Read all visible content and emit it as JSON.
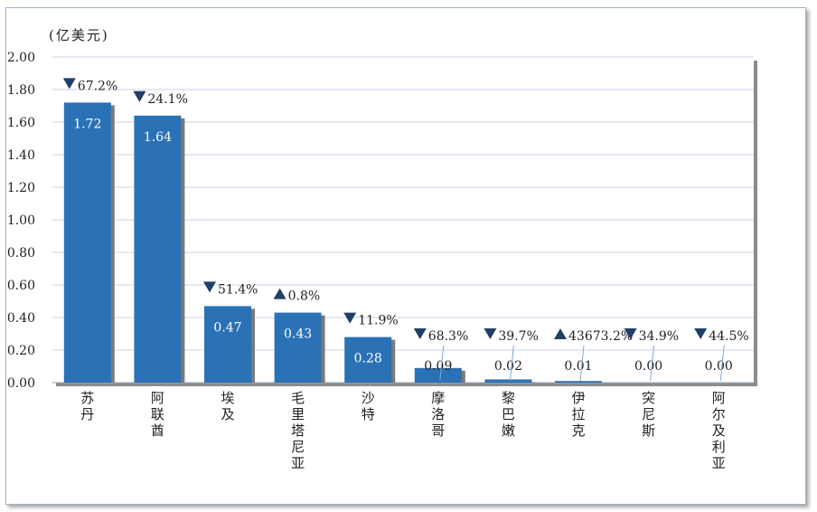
{
  "unit_label": "(亿美元)",
  "chart_data": {
    "type": "bar",
    "categories": [
      "苏丹",
      "阿联酋",
      "埃及",
      "毛里塔尼亚",
      "沙特",
      "摩洛哥",
      "黎巴嫩",
      "伊拉克",
      "突尼斯",
      "阿尔及利亚"
    ],
    "values": [
      1.72,
      1.64,
      0.47,
      0.43,
      0.28,
      0.09,
      0.02,
      0.01,
      0.0,
      0.0
    ],
    "value_labels": [
      "1.72",
      "1.64",
      "0.47",
      "0.43",
      "0.28",
      "0.09",
      "0.02",
      "0.01",
      "0.00",
      "0.00"
    ],
    "changes": [
      {
        "dir": "down",
        "text": "67.2%"
      },
      {
        "dir": "down",
        "text": "24.1%"
      },
      {
        "dir": "down",
        "text": "51.4%"
      },
      {
        "dir": "up",
        "text": "0.8%"
      },
      {
        "dir": "down",
        "text": "11.9%"
      },
      {
        "dir": "down",
        "text": "68.3%"
      },
      {
        "dir": "down",
        "text": "39.7%"
      },
      {
        "dir": "up",
        "text": "43673.2%"
      },
      {
        "dir": "down",
        "text": "34.9%"
      },
      {
        "dir": "down",
        "text": "44.5%"
      }
    ],
    "y_ticks": [
      "0.00",
      "0.20",
      "0.40",
      "0.60",
      "0.80",
      "1.00",
      "1.20",
      "1.40",
      "1.60",
      "1.80",
      "2.00"
    ],
    "ylim": [
      0,
      2.0
    ],
    "grid": true,
    "colors": {
      "bar": "#2a72b5",
      "grid": "#c9d6e6",
      "marker": "#1f3f66",
      "leader": "#7fa8d4"
    }
  }
}
